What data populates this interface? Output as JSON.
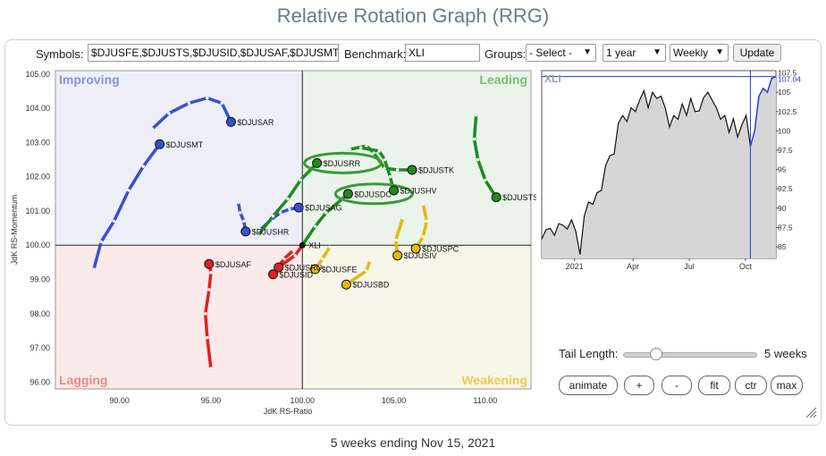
{
  "title": "Relative Rotation Graph (RRG)",
  "toolbar": {
    "symbols_label": "Symbols:",
    "symbols_value": "$DJUSFE,$DJUSTS,$DJUSID,$DJUSAF,$DJUSMT",
    "benchmark_label": "Benchmark:",
    "benchmark_value": "XLI",
    "groups_label": "Groups:",
    "groups_value": "- Select -",
    "period_value": "1 year",
    "frequency_value": "Weekly",
    "update_label": "Update"
  },
  "controls": {
    "tail_label": "Tail Length:",
    "tail_value": "5 weeks",
    "tail_fraction": 0.25,
    "buttons": [
      "animate",
      "+",
      "-",
      "fit",
      "ctr",
      "max"
    ]
  },
  "footer": "5 weeks ending Nov 15, 2021",
  "colors": {
    "improving": "#5560c8",
    "leading": "#23931f",
    "weakening": "#e8c21a",
    "lagging": "#e02020",
    "benchmark_line": "#2b3bd6"
  },
  "chart_data": [
    {
      "type": "scatter",
      "title": "",
      "xlabel": "JdK RS-Ratio",
      "ylabel": "JdK RS-Momentum",
      "xlim": [
        86.5,
        112.5
      ],
      "ylim": [
        95.8,
        105.1
      ],
      "xticks": [
        "90.00",
        "95.00",
        "100.00",
        "105.00",
        "110.00"
      ],
      "yticks": [
        "96.00",
        "97.00",
        "98.00",
        "99.00",
        "100.00",
        "101.00",
        "102.00",
        "103.00",
        "104.00",
        "105.00"
      ],
      "quadrants": [
        "Improving",
        "Leading",
        "Weakening",
        "Lagging"
      ],
      "grid": false,
      "highlighted": [
        "$DJUSRR",
        "$DJUSDC"
      ],
      "series": [
        {
          "name": "$DJUSAR",
          "color": "#3a4fd0",
          "points": [
            [
              91.8,
              103.4
            ],
            [
              92.7,
              103.85
            ],
            [
              93.8,
              104.15
            ],
            [
              94.8,
              104.3
            ],
            [
              95.6,
              104.15
            ],
            [
              96.1,
              103.6
            ]
          ]
        },
        {
          "name": "$DJUSMT",
          "color": "#3a4fd0",
          "points": [
            [
              88.6,
              99.3
            ],
            [
              89.0,
              100.1
            ],
            [
              89.7,
              100.7
            ],
            [
              90.5,
              101.6
            ],
            [
              91.3,
              102.3
            ],
            [
              92.2,
              102.95
            ]
          ]
        },
        {
          "name": "$DJUSHR",
          "color": "#3a4fd0",
          "points": [
            [
              96.5,
              101.25
            ],
            [
              96.6,
              100.95
            ],
            [
              96.8,
              100.7
            ],
            [
              96.9,
              100.4
            ]
          ]
        },
        {
          "name": "$DJUSAG",
          "color": "#3a4fd0",
          "points": [
            [
              97.7,
              100.45
            ],
            [
              98.3,
              100.75
            ],
            [
              98.8,
              100.95
            ],
            [
              99.3,
              101.05
            ],
            [
              99.8,
              101.1
            ]
          ]
        },
        {
          "name": "$DJUSRR",
          "color": "#1f8a1f",
          "points": [
            [
              97.6,
              100.3
            ],
            [
              98.4,
              100.85
            ],
            [
              99.2,
              101.35
            ],
            [
              99.9,
              101.9
            ],
            [
              100.8,
              102.4
            ]
          ]
        },
        {
          "name": "$DJUSDC",
          "color": "#1f8a1f",
          "points": [
            [
              100.0,
              100.0
            ],
            [
              100.7,
              100.55
            ],
            [
              101.3,
              100.95
            ],
            [
              102.5,
              101.5
            ]
          ]
        },
        {
          "name": "$DJUSTK",
          "color": "#1f8a1f",
          "points": [
            [
              102.6,
              102.8
            ],
            [
              103.5,
              102.9
            ],
            [
              103.9,
              102.7
            ],
            [
              104.5,
              102.25
            ],
            [
              105.2,
              102.2
            ],
            [
              106.0,
              102.2
            ]
          ]
        },
        {
          "name": "$DJUSHV",
          "color": "#1f8a1f",
          "points": [
            [
              103.2,
              102.85
            ],
            [
              104.2,
              102.75
            ],
            [
              104.5,
              102.5
            ],
            [
              104.8,
              102.0
            ],
            [
              105.0,
              101.6
            ]
          ]
        },
        {
          "name": "$DJUSTS",
          "color": "#1f8a1f",
          "points": [
            [
              109.5,
              103.8
            ],
            [
              109.4,
              103.1
            ],
            [
              109.6,
              102.5
            ],
            [
              110.0,
              101.9
            ],
            [
              110.6,
              101.4
            ]
          ]
        },
        {
          "name": "$DJUSPC",
          "color": "#e4b80f",
          "points": [
            [
              106.6,
              101.2
            ],
            [
              106.8,
              100.7
            ],
            [
              106.6,
              100.25
            ],
            [
              106.2,
              99.9
            ]
          ]
        },
        {
          "name": "$DJUSIV",
          "color": "#e4b80f",
          "points": [
            [
              105.5,
              100.8
            ],
            [
              105.1,
              100.15
            ],
            [
              105.2,
              99.7
            ]
          ]
        },
        {
          "name": "$DJUSBD",
          "color": "#e4b80f",
          "points": [
            [
              103.7,
              99.55
            ],
            [
              103.5,
              99.25
            ],
            [
              102.4,
              98.85
            ]
          ]
        },
        {
          "name": "$DJUSFE",
          "color": "#e4b80f",
          "points": [
            [
              101.5,
              99.95
            ],
            [
              101.1,
              99.6
            ],
            [
              100.7,
              99.3
            ]
          ]
        },
        {
          "name": "$DJUSAF",
          "color": "#e02020",
          "points": [
            [
              95.0,
              96.4
            ],
            [
              94.8,
              97.3
            ],
            [
              94.7,
              98.0
            ],
            [
              94.9,
              98.7
            ],
            [
              95.0,
              99.2
            ],
            [
              94.9,
              99.45
            ]
          ]
        },
        {
          "name": "$DJUSID",
          "color": "#e02020",
          "points": [
            [
              99.5,
              99.85
            ],
            [
              99.0,
              99.6
            ],
            [
              98.4,
              99.15
            ]
          ]
        },
        {
          "name": "$DJUSRU",
          "color": "#e02020",
          "points": [
            [
              100.0,
              100.0
            ],
            [
              99.6,
              99.7
            ],
            [
              98.7,
              99.35
            ]
          ]
        },
        {
          "name": "XLI",
          "color": "#111111",
          "points": [
            [
              100.0,
              100.0
            ]
          ]
        }
      ]
    },
    {
      "type": "line",
      "title": "XLI",
      "xticks": [
        "2021",
        "Apr",
        "Jul",
        "Oct"
      ],
      "yticks": [
        "85",
        "87.5",
        "90",
        "92.5",
        "95",
        "97.5",
        "100",
        "102.5",
        "105",
        "107.5"
      ],
      "ylim": [
        83.5,
        107.8
      ],
      "last_value": "107.04",
      "values": [
        86.0,
        87.2,
        87.4,
        86.5,
        88.0,
        87.8,
        87.3,
        88.5,
        87.0,
        84.0,
        89.0,
        90.8,
        90.5,
        92.0,
        92.3,
        95.5,
        96.8,
        97.0,
        101.0,
        102.0,
        101.2,
        103.0,
        102.5,
        104.0,
        105.2,
        103.0,
        105.0,
        104.2,
        104.5,
        103.0,
        100.5,
        102.0,
        101.5,
        103.5,
        102.0,
        104.2,
        102.5,
        102.6,
        104.3,
        105.0,
        104.0,
        103.0,
        101.5,
        102.0,
        99.8,
        101.6,
        99.2,
        100.8,
        102.0,
        98.0,
        100.0,
        104.5,
        105.5,
        105.0,
        106.8,
        107.04
      ]
    }
  ]
}
